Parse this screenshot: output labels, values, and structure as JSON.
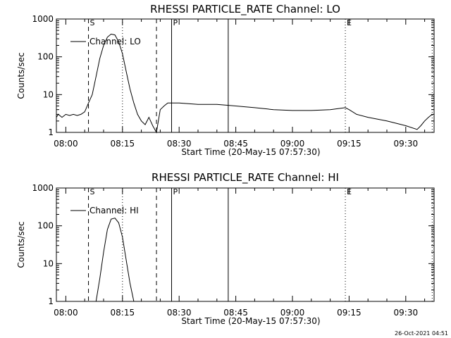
{
  "chart_data": [
    {
      "type": "line",
      "title": "RHESSI PARTICLE_RATE Channel: LO",
      "xlabel": "Start Time (20-May-15 07:57:30)",
      "ylabel": "Counts/sec",
      "yscale": "log",
      "ylim": [
        1,
        1000
      ],
      "xlim": [
        "07:57:30",
        "09:37:30"
      ],
      "x_ticks": [
        "08:00",
        "08:15",
        "08:30",
        "08:45",
        "09:00",
        "09:15",
        "09:30"
      ],
      "y_ticks": [
        "1",
        "10",
        "100",
        "1000"
      ],
      "legend": {
        "position": "top-left",
        "entries": [
          "Channel: LO"
        ]
      },
      "flags": [
        {
          "label": "S",
          "time": "08:06"
        },
        {
          "label": "P",
          "time": "08:28"
        },
        {
          "label": "E",
          "time": "09:14"
        }
      ],
      "markers": [
        {
          "time": "08:06",
          "style": "dashed"
        },
        {
          "time": "08:15",
          "style": "dotted"
        },
        {
          "time": "08:24",
          "style": "dashed"
        },
        {
          "time": "08:28",
          "style": "solid"
        },
        {
          "time": "08:43",
          "style": "solid"
        },
        {
          "time": "09:14",
          "style": "dotted"
        },
        {
          "time": "09:37",
          "style": "dotted"
        }
      ],
      "series": [
        {
          "name": "Channel: LO",
          "x": [
            "07:57:30",
            "07:58:00",
            "07:59:00",
            "08:00:00",
            "08:01:00",
            "08:02:00",
            "08:03:00",
            "08:04:00",
            "08:05:00",
            "08:06:00",
            "08:07:00",
            "08:08:00",
            "08:09:00",
            "08:10:00",
            "08:11:00",
            "08:12:00",
            "08:13:00",
            "08:14:00",
            "08:15:00",
            "08:16:00",
            "08:17:00",
            "08:18:00",
            "08:19:00",
            "08:20:00",
            "08:21:00",
            "08:22:00",
            "08:23:00",
            "08:24:00",
            "08:25:00",
            "08:26:00",
            "08:27:00",
            "08:30:00",
            "08:35:00",
            "08:40:00",
            "08:45:00",
            "08:50:00",
            "08:55:00",
            "09:00:00",
            "09:05:00",
            "09:10:00",
            "09:14:00",
            "09:15:00",
            "09:17:00",
            "09:20:00",
            "09:25:00",
            "09:30:00",
            "09:33:00",
            "09:34:00",
            "09:35:00",
            "09:36:00",
            "09:37:00"
          ],
          "y": [
            2.5,
            3,
            2.5,
            3,
            2.8,
            3,
            2.8,
            3,
            3.5,
            6,
            10,
            30,
            90,
            200,
            330,
            400,
            380,
            250,
            120,
            40,
            14,
            6,
            3,
            2,
            1.6,
            2.5,
            1.5,
            1,
            4,
            5,
            6,
            6,
            5.5,
            5.5,
            5,
            4.5,
            4,
            3.8,
            3.8,
            4,
            4.5,
            4,
            3,
            2.5,
            2,
            1.5,
            1.2,
            1.5,
            2,
            2.5,
            3
          ]
        }
      ]
    },
    {
      "type": "line",
      "title": "RHESSI PARTICLE_RATE Channel: HI",
      "xlabel": "Start Time (20-May-15 07:57:30)",
      "ylabel": "Counts/sec",
      "yscale": "log",
      "ylim": [
        1,
        1000
      ],
      "xlim": [
        "07:57:30",
        "09:37:30"
      ],
      "x_ticks": [
        "08:00",
        "08:15",
        "08:30",
        "08:45",
        "09:00",
        "09:15",
        "09:30"
      ],
      "y_ticks": [
        "1",
        "10",
        "100",
        "1000"
      ],
      "legend": {
        "position": "top-left",
        "entries": [
          "Channel: HI"
        ]
      },
      "flags": [
        {
          "label": "S",
          "time": "08:06"
        },
        {
          "label": "P",
          "time": "08:28"
        },
        {
          "label": "E",
          "time": "09:14"
        }
      ],
      "markers": [
        {
          "time": "08:06",
          "style": "dashed"
        },
        {
          "time": "08:15",
          "style": "dotted"
        },
        {
          "time": "08:24",
          "style": "dashed"
        },
        {
          "time": "08:28",
          "style": "solid"
        },
        {
          "time": "08:43",
          "style": "solid"
        },
        {
          "time": "09:14",
          "style": "dotted"
        },
        {
          "time": "09:37",
          "style": "dotted"
        }
      ],
      "series": [
        {
          "name": "Channel: HI",
          "x": [
            "08:08:00",
            "08:09:00",
            "08:10:00",
            "08:11:00",
            "08:12:00",
            "08:13:00",
            "08:14:00",
            "08:15:00",
            "08:16:00",
            "08:17:00",
            "08:18:00"
          ],
          "y": [
            1,
            4,
            20,
            80,
            150,
            160,
            120,
            50,
            12,
            3,
            1
          ]
        }
      ]
    }
  ],
  "footer": {
    "timestamp": "26-Oct-2021 04:51"
  }
}
